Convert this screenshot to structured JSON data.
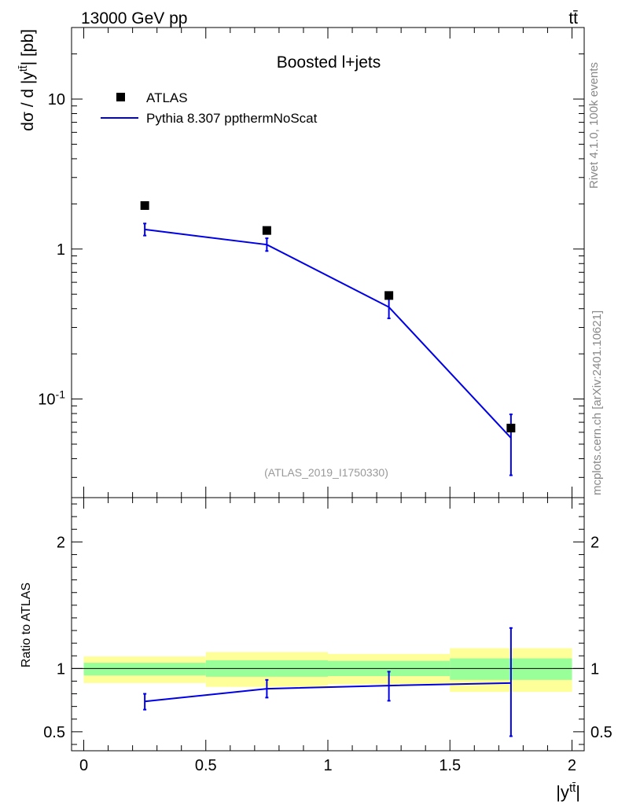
{
  "header": {
    "energy_label": "13000 GeV pp",
    "process_label": "tt̄"
  },
  "side_labels": {
    "rivet_label": "Rivet 4.1.0,  100k events",
    "mcplots_label": "mcplots.cern.ch [arXiv:2401.10621]"
  },
  "chart_data": [
    {
      "type": "scatter",
      "panel": "main",
      "title": "Boosted l+jets",
      "analysis_label": "(ATLAS_2019_I1750330)",
      "xlabel": "|y^{tt̄}|",
      "ylabel": "dσ / d |y^{tt̄}| [pb]",
      "yscale": "log",
      "xlim": [
        -0.05,
        2.05
      ],
      "ylim": [
        0.022,
        30
      ],
      "y_tick_labels": [
        "10^{-1}",
        "1",
        "10"
      ],
      "legend_position": "top-left",
      "bin_edges": [
        0,
        0.5,
        1.0,
        1.5,
        2.0
      ],
      "x": [
        0.25,
        0.75,
        1.25,
        1.75
      ],
      "series": [
        {
          "name": "ATLAS",
          "style": "markers",
          "color": "#000000",
          "values": [
            1.95,
            1.33,
            0.49,
            0.064
          ]
        },
        {
          "name": "Pythia 8.307 ppthermNoScat",
          "style": "line",
          "color": "#0000e6",
          "values": [
            1.35,
            1.07,
            0.41,
            0.055
          ],
          "err_low": [
            1.23,
            0.97,
            0.345,
            0.031
          ],
          "err_high": [
            1.48,
            1.18,
            0.47,
            0.079
          ]
        }
      ]
    },
    {
      "type": "line",
      "panel": "ratio",
      "ylabel": "Ratio to ATLAS",
      "xlabel": "|y^{tt̄}|",
      "xlim": [
        -0.05,
        2.05
      ],
      "ylim": [
        0.35,
        2.35
      ],
      "x_tick_labels": [
        "0",
        "0.5",
        "1",
        "1.5",
        "2"
      ],
      "y_tick_labels": [
        "0.5",
        "1",
        "2"
      ],
      "reference_line": 1.0,
      "bands": {
        "yellow_color": "#ffff99",
        "green_color": "#99ff99",
        "bins": [
          {
            "x0": 0.0,
            "x1": 0.5,
            "yellow": [
              0.885,
              1.095
            ],
            "green": [
              0.945,
              1.045
            ]
          },
          {
            "x0": 0.5,
            "x1": 1.0,
            "yellow": [
              0.855,
              1.13
            ],
            "green": [
              0.935,
              1.065
            ]
          },
          {
            "x0": 1.0,
            "x1": 1.5,
            "yellow": [
              0.875,
              1.115
            ],
            "green": [
              0.94,
              1.06
            ]
          },
          {
            "x0": 1.5,
            "x1": 2.0,
            "yellow": [
              0.815,
              1.16
            ],
            "green": [
              0.91,
              1.08
            ]
          }
        ]
      },
      "x": [
        0.25,
        0.75,
        1.25,
        1.75
      ],
      "series": [
        {
          "name": "Pythia 8.307 ppthermNoScat",
          "color": "#0000e6",
          "values": [
            0.74,
            0.84,
            0.865,
            0.885
          ],
          "err_low": [
            0.675,
            0.77,
            0.745,
            0.465
          ],
          "err_high": [
            0.8,
            0.91,
            0.975,
            1.32
          ]
        }
      ]
    }
  ]
}
